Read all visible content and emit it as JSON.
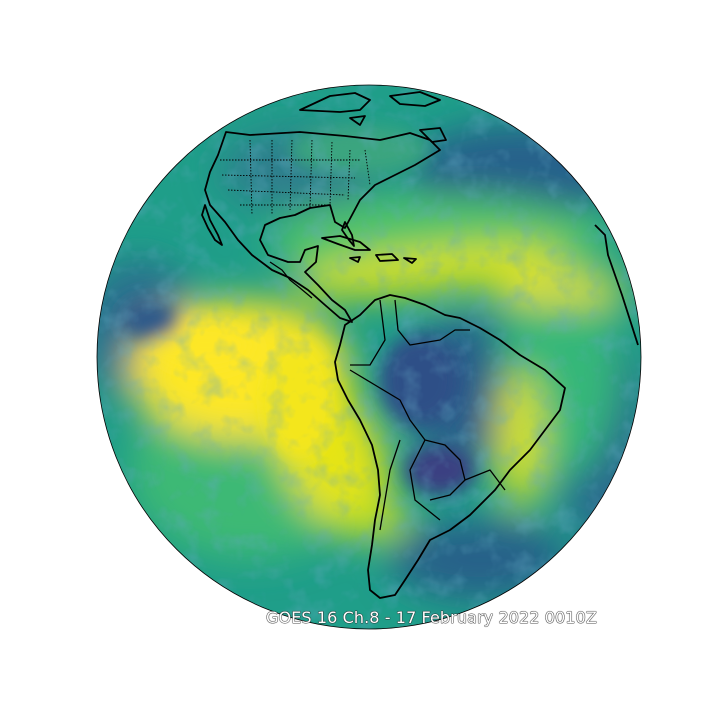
{
  "figure": {
    "caption": "GOES 16 Ch.8 - 17 February 2022 0010Z",
    "satellite": "GOES 16",
    "channel": "Ch.8",
    "date": "17 February 2022",
    "time": "0010Z"
  },
  "colors": {
    "background": "#ffffff",
    "colormap_low": "#3b1f6e",
    "colormap_mid_low": "#21638c",
    "colormap_mid": "#24a884",
    "colormap_mid_high": "#8fd744",
    "colormap_high": "#fde725",
    "coastline": "#000000"
  },
  "map": {
    "projection": "geostationary full disk",
    "colormap": "viridis",
    "features": [
      "coastlines",
      "country-borders",
      "us-state-borders"
    ]
  }
}
